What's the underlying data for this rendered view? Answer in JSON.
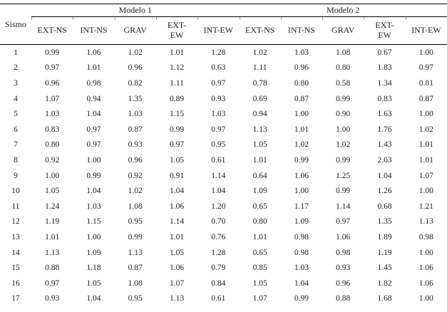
{
  "colors": {
    "background": "#ffffff",
    "text": "#1c1c1c",
    "rule": "#000000",
    "tick": "#999999"
  },
  "table": {
    "corner_label": "Sismo",
    "group_headers": [
      "Modelo 1",
      "Modelo 2"
    ],
    "columns": [
      "EXT-NS",
      "INT-NS",
      "GRAV",
      "EXT-\nEW",
      "INT-EW"
    ],
    "rows": [
      {
        "sismo": "1",
        "modelo1": [
          "0.99",
          "1.06",
          "1.02",
          "1.01",
          "1.28"
        ],
        "modelo2": [
          "1.02",
          "1.03",
          "1.08",
          "0.67",
          "1.00"
        ]
      },
      {
        "sismo": "2",
        "modelo1": [
          "0.97",
          "1.01",
          "0.96",
          "1.12",
          "0.63"
        ],
        "modelo2": [
          "1.11",
          "0.96",
          "0.80",
          "1.83",
          "0.97"
        ]
      },
      {
        "sismo": "3",
        "modelo1": [
          "0.96",
          "0.98",
          "0.82",
          "1.11",
          "0.97"
        ],
        "modelo2": [
          "0.78",
          "0.80",
          "0.58",
          "1.34",
          "0.81"
        ]
      },
      {
        "sismo": "4",
        "modelo1": [
          "1.07",
          "0.94",
          "1.35",
          "0.89",
          "0.93"
        ],
        "modelo2": [
          "0.69",
          "0.87",
          "0.99",
          "0.83",
          "0.87"
        ]
      },
      {
        "sismo": "5",
        "modelo1": [
          "1.03",
          "1.04",
          "1.03",
          "1.15",
          "1.03"
        ],
        "modelo2": [
          "0.94",
          "1.00",
          "0.90",
          "1.63",
          "1.00"
        ]
      },
      {
        "sismo": "6",
        "modelo1": [
          "0.83",
          "0.97",
          "0.87",
          "0.99",
          "0.97"
        ],
        "modelo2": [
          "1.13",
          "1.01",
          "1.00",
          "1.76",
          "1.02"
        ]
      },
      {
        "sismo": "7",
        "modelo1": [
          "0.80",
          "0.97",
          "0.93",
          "0.97",
          "0.95"
        ],
        "modelo2": [
          "1.05",
          "1.02",
          "1.02",
          "1.43",
          "1.01"
        ]
      },
      {
        "sismo": "8",
        "modelo1": [
          "0.92",
          "1.00",
          "0.96",
          "1.05",
          "0.61"
        ],
        "modelo2": [
          "1.01",
          "0.99",
          "0.99",
          "2.03",
          "1.01"
        ]
      },
      {
        "sismo": "9",
        "modelo1": [
          "1.00",
          "0.99",
          "0.92",
          "0.91",
          "1.14"
        ],
        "modelo2": [
          "0.64",
          "1.06",
          "1.25",
          "1.04",
          "1.07"
        ]
      },
      {
        "sismo": "10",
        "modelo1": [
          "1.05",
          "1.04",
          "1.02",
          "1.04",
          "1.04"
        ],
        "modelo2": [
          "1.09",
          "1.00",
          "0.99",
          "1.26",
          "1.00"
        ]
      },
      {
        "sismo": "11",
        "modelo1": [
          "1.24",
          "1.03",
          "1.08",
          "1.06",
          "1.20"
        ],
        "modelo2": [
          "0.65",
          "1.17",
          "1.14",
          "0.68",
          "1.21"
        ]
      },
      {
        "sismo": "12",
        "modelo1": [
          "1.19",
          "1.15",
          "0.95",
          "1.14",
          "0.70"
        ],
        "modelo2": [
          "0.80",
          "1.09",
          "0.97",
          "1.35",
          "1.13"
        ]
      },
      {
        "sismo": "13",
        "modelo1": [
          "1.01",
          "1.00",
          "0.99",
          "1.01",
          "0.76"
        ],
        "modelo2": [
          "1.01",
          "0.98",
          "1.06",
          "1.89",
          "0.98"
        ]
      },
      {
        "sismo": "14",
        "modelo1": [
          "1.13",
          "1.09",
          "1.13",
          "1.05",
          "1.28"
        ],
        "modelo2": [
          "0.65",
          "0.98",
          "0.98",
          "1.19",
          "1.00"
        ]
      },
      {
        "sismo": "15",
        "modelo1": [
          "0.88",
          "1.18",
          "0.87",
          "1.06",
          "0.79"
        ],
        "modelo2": [
          "0.85",
          "1.03",
          "0.93",
          "1.45",
          "1.06"
        ]
      },
      {
        "sismo": "16",
        "modelo1": [
          "0.97",
          "1.05",
          "1.08",
          "1.07",
          "0.84"
        ],
        "modelo2": [
          "1.05",
          "1.04",
          "0.96",
          "1.82",
          "1.06"
        ]
      },
      {
        "sismo": "17",
        "modelo1": [
          "0.93",
          "1.04",
          "0.95",
          "1.13",
          "0.61"
        ],
        "modelo2": [
          "1.07",
          "0.99",
          "0.88",
          "1.68",
          "1.00"
        ]
      }
    ]
  }
}
